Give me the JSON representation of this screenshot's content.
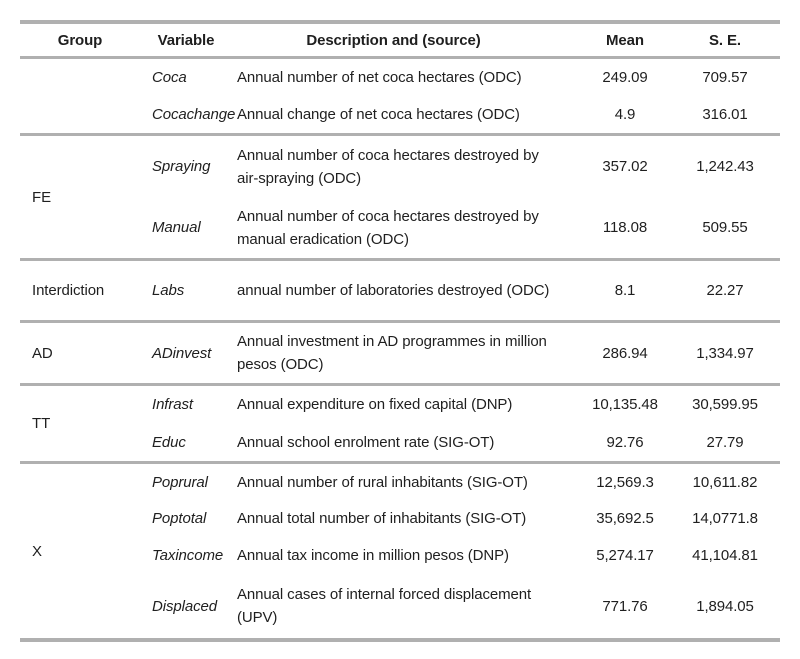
{
  "colors": {
    "rule_gray": "#b0b0b0",
    "text": "#1f1f1f",
    "background": "#ffffff"
  },
  "table": {
    "headers": {
      "group": "Group",
      "variable": "Variable",
      "description": "Description and (source)",
      "mean": "Mean",
      "se": "S. E."
    },
    "sections": [
      {
        "group": "",
        "rows": [
          {
            "variable": "Coca",
            "description": "Annual number of net coca hectares (ODC)",
            "mean": "249.09",
            "se": "709.57"
          },
          {
            "variable": "Cocachange",
            "description": "Annual change of net coca hectares (ODC)",
            "mean": "4.9",
            "se": "316.01"
          }
        ]
      },
      {
        "group": "FE",
        "rows": [
          {
            "variable": "Spraying",
            "description": "Annual number of coca hectares destroyed by air-spraying (ODC)",
            "mean": "357.02",
            "se": "1,242.43"
          },
          {
            "variable": "Manual",
            "description": "Annual number of coca hectares destroyed by manual eradication (ODC)",
            "mean": "118.08",
            "se": "509.55"
          }
        ]
      },
      {
        "group": "Interdiction",
        "rows": [
          {
            "variable": "Labs",
            "description": "annual number of laboratories destroyed (ODC)",
            "mean": "8.1",
            "se": "22.27"
          }
        ]
      },
      {
        "group": "AD",
        "rows": [
          {
            "variable": "ADinvest",
            "description": "Annual investment in AD programmes in million pesos (ODC)",
            "mean": "286.94",
            "se": "1,334.97"
          }
        ]
      },
      {
        "group": "TT",
        "rows": [
          {
            "variable": "Infrast",
            "description": "Annual expenditure on fixed capital (DNP)",
            "mean": "10,135.48",
            "se": "30,599.95"
          },
          {
            "variable": "Educ",
            "description": "Annual school enrolment rate (SIG-OT)",
            "mean": "92.76",
            "se": "27.79"
          }
        ]
      },
      {
        "group": "X",
        "rows": [
          {
            "variable": "Poprural",
            "description": "Annual number of rural inhabitants (SIG-OT)",
            "mean": "12,569.3",
            "se": "10,611.82"
          },
          {
            "variable": "Poptotal",
            "description": "Annual total number of inhabitants (SIG-OT)",
            "mean": "35,692.5",
            "se": "14,0771.8"
          },
          {
            "variable": "Taxincome",
            "description": "Annual tax income in million pesos (DNP)",
            "mean": "5,274.17",
            "se": "41,104.81"
          },
          {
            "variable": "Displaced",
            "description": "Annual cases of internal forced displacement (UPV)",
            "mean": "771.76",
            "se": "1,894.05"
          }
        ]
      }
    ]
  }
}
